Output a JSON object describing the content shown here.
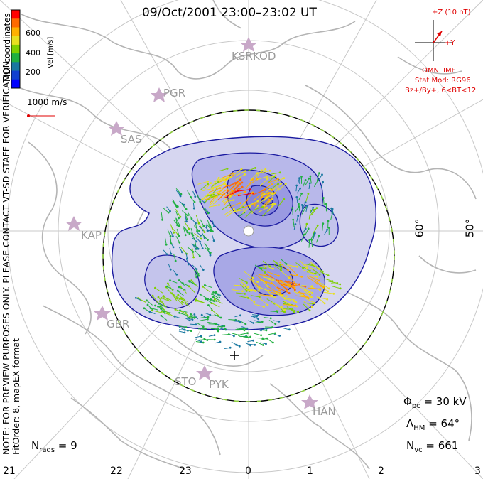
{
  "title": "09/Oct/2001 23:00–23:02 UT",
  "colorbar": {
    "label": "Vel [m/s]",
    "ticks": [
      "600",
      "400",
      "200"
    ],
    "colors": [
      "#ff0000",
      "#ff6a00",
      "#ffb000",
      "#e8e020",
      "#7fd000",
      "#20b040",
      "#1878a0",
      "#1040d0",
      "#0000ff"
    ]
  },
  "coordinates_label": "MLT coordinates",
  "reference_vector": "1000 m/s",
  "note_lines": [
    "NOTE: FOR PREVIEW PURPOSES ONLY. PLEASE CONTACT VT-SD STAFF FOR VERIFICATION.",
    "FitOrder: 8, mapEX format"
  ],
  "imf": {
    "axis_z": "+Z (10 nT)",
    "axis_y": "+Y",
    "source": "OMNI IMF",
    "model_line1": "Stat Mod: RG96",
    "model_line2": "Bz+/By+, 6<BT<12"
  },
  "stations": [
    "KSR",
    "KOD",
    "PGR",
    "SAS",
    "KAP",
    "GBR",
    "STO",
    "PYK",
    "HAN"
  ],
  "latitude_labels": [
    "60°",
    "50°"
  ],
  "mlt_labels": [
    "21",
    "22",
    "23",
    "0",
    "1",
    "2",
    "3"
  ],
  "stats": {
    "phi_pc": "30 kV",
    "lambda_hm": "64°",
    "n_vc": "661",
    "n_rads": "9"
  },
  "colors": {
    "contour": "#1a1aa0",
    "grid": "#c8c8c8",
    "coast": "#b4b4b4",
    "hmb_dash": "#90d040",
    "imf_red": "#e00000"
  }
}
